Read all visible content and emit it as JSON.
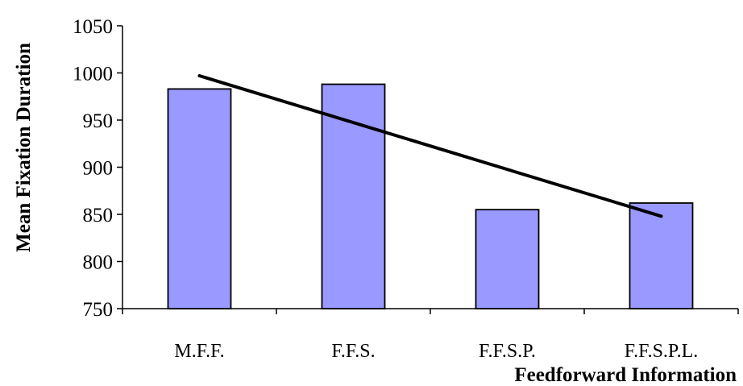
{
  "chart_data": {
    "type": "bar",
    "title": "",
    "xlabel": "Feedforward Information",
    "ylabel": "Mean Fixation Duration",
    "categories": [
      "M.F.F.",
      "F.F.S.",
      "F.F.S.P.",
      "F.F.S.P.L."
    ],
    "values": [
      983,
      988,
      855,
      862
    ],
    "ylim": [
      750,
      1050
    ],
    "yticks": [
      750,
      800,
      850,
      900,
      950,
      1000,
      1050
    ],
    "trendline": {
      "type": "linear",
      "start": 997,
      "end": 848
    },
    "grid": false,
    "legend": "none",
    "colors": {
      "bar_fill": "#9999ff",
      "bar_stroke": "#000000",
      "trendline": "#000000"
    }
  }
}
